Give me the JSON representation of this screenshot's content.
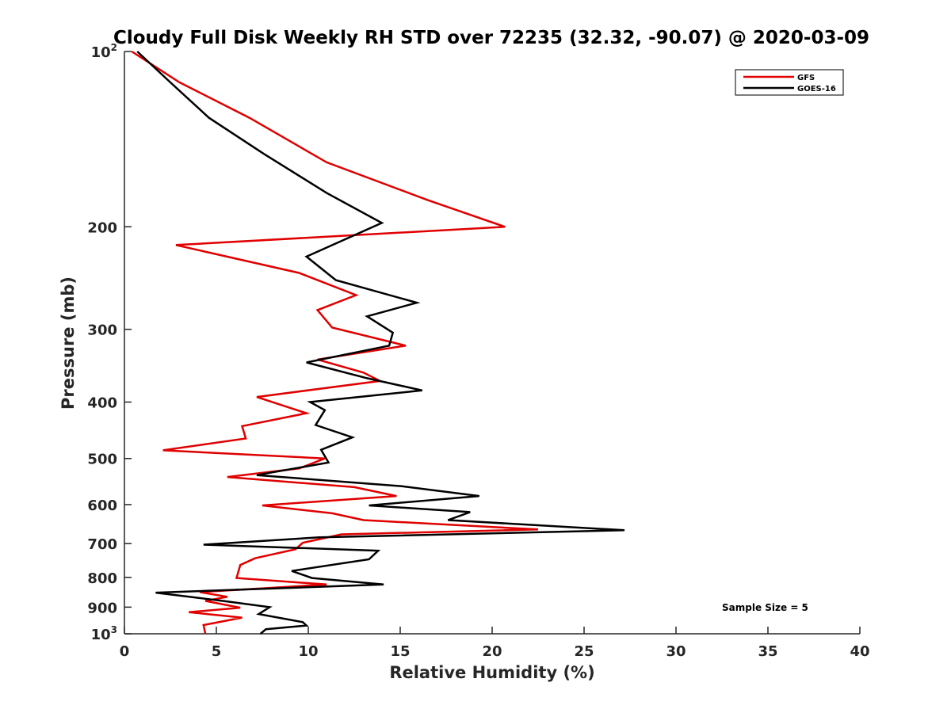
{
  "chart_data": {
    "type": "line",
    "title": "Cloudy Full Disk Weekly RH STD over 72235 (32.32, -90.07) @ 2020-03-09",
    "xlabel": "Relative Humidity (%)",
    "ylabel": "Pressure (mb)",
    "xlim": [
      0,
      40
    ],
    "ylim": [
      100,
      1000
    ],
    "yscale": "log",
    "y_reversed": true,
    "grid": false,
    "x_ticks": [
      0,
      5,
      10,
      15,
      20,
      25,
      30,
      35,
      40
    ],
    "y_ticks": [
      {
        "value": 100,
        "label": "10",
        "sup": "2"
      },
      {
        "value": 200,
        "label": "200",
        "sup": ""
      },
      {
        "value": 300,
        "label": "300",
        "sup": ""
      },
      {
        "value": 400,
        "label": "400",
        "sup": ""
      },
      {
        "value": 500,
        "label": "500",
        "sup": ""
      },
      {
        "value": 600,
        "label": "600",
        "sup": ""
      },
      {
        "value": 700,
        "label": "700",
        "sup": ""
      },
      {
        "value": 800,
        "label": "800",
        "sup": ""
      },
      {
        "value": 900,
        "label": "900",
        "sup": ""
      },
      {
        "value": 1000,
        "label": "10",
        "sup": "3"
      }
    ],
    "legend_position": "top-right",
    "annotation": "Sample Size = 5",
    "series": [
      {
        "name": "GFS",
        "color": "#e00000",
        "points": [
          [
            0.4,
            100
          ],
          [
            3.0,
            113
          ],
          [
            6.8,
            130
          ],
          [
            11.0,
            155
          ],
          [
            16.5,
            180
          ],
          [
            20.7,
            200
          ],
          [
            2.8,
            215
          ],
          [
            9.5,
            240
          ],
          [
            12.6,
            262
          ],
          [
            10.5,
            278
          ],
          [
            11.3,
            298
          ],
          [
            15.3,
            320
          ],
          [
            10.5,
            338
          ],
          [
            13.0,
            356
          ],
          [
            13.9,
            368
          ],
          [
            7.2,
            392
          ],
          [
            9.9,
            418
          ],
          [
            6.4,
            440
          ],
          [
            6.6,
            462
          ],
          [
            2.1,
            484
          ],
          [
            10.9,
            500
          ],
          [
            9.5,
            520
          ],
          [
            5.6,
            538
          ],
          [
            12.5,
            560
          ],
          [
            14.8,
            580
          ],
          [
            7.5,
            602
          ],
          [
            11.3,
            621
          ],
          [
            13.0,
            638
          ],
          [
            22.5,
            662
          ],
          [
            11.8,
            675
          ],
          [
            9.7,
            698
          ],
          [
            9.3,
            716
          ],
          [
            7.1,
            742
          ],
          [
            6.3,
            762
          ],
          [
            6.1,
            802
          ],
          [
            11.0,
            823
          ],
          [
            4.1,
            848
          ],
          [
            5.6,
            864
          ],
          [
            4.4,
            878
          ],
          [
            6.3,
            902
          ],
          [
            3.5,
            918
          ],
          [
            6.4,
            938
          ],
          [
            4.3,
            966
          ],
          [
            4.4,
            1000
          ]
        ]
      },
      {
        "name": "GOES-16",
        "color": "#000000",
        "points": [
          [
            0.7,
            100
          ],
          [
            2.5,
            113
          ],
          [
            4.6,
            130
          ],
          [
            7.6,
            150
          ],
          [
            11.0,
            175
          ],
          [
            14.0,
            197
          ],
          [
            9.9,
            225
          ],
          [
            11.5,
            247
          ],
          [
            15.9,
            270
          ],
          [
            13.2,
            285
          ],
          [
            14.6,
            304
          ],
          [
            14.4,
            320
          ],
          [
            9.9,
            342
          ],
          [
            13.2,
            364
          ],
          [
            16.2,
            382
          ],
          [
            10.1,
            400
          ],
          [
            10.9,
            413
          ],
          [
            10.4,
            438
          ],
          [
            12.4,
            460
          ],
          [
            10.7,
            483
          ],
          [
            11.1,
            508
          ],
          [
            7.2,
            534
          ],
          [
            15.1,
            558
          ],
          [
            19.3,
            580
          ],
          [
            13.3,
            602
          ],
          [
            18.8,
            618
          ],
          [
            17.6,
            638
          ],
          [
            27.2,
            664
          ],
          [
            10.6,
            683
          ],
          [
            4.3,
            703
          ],
          [
            13.8,
            720
          ],
          [
            13.3,
            745
          ],
          [
            9.1,
            780
          ],
          [
            10.2,
            802
          ],
          [
            14.1,
            823
          ],
          [
            1.7,
            850
          ],
          [
            5.6,
            880
          ],
          [
            7.9,
            900
          ],
          [
            7.3,
            925
          ],
          [
            9.7,
            955
          ],
          [
            9.9,
            968
          ],
          [
            7.7,
            982
          ],
          [
            7.4,
            1000
          ]
        ]
      }
    ]
  }
}
